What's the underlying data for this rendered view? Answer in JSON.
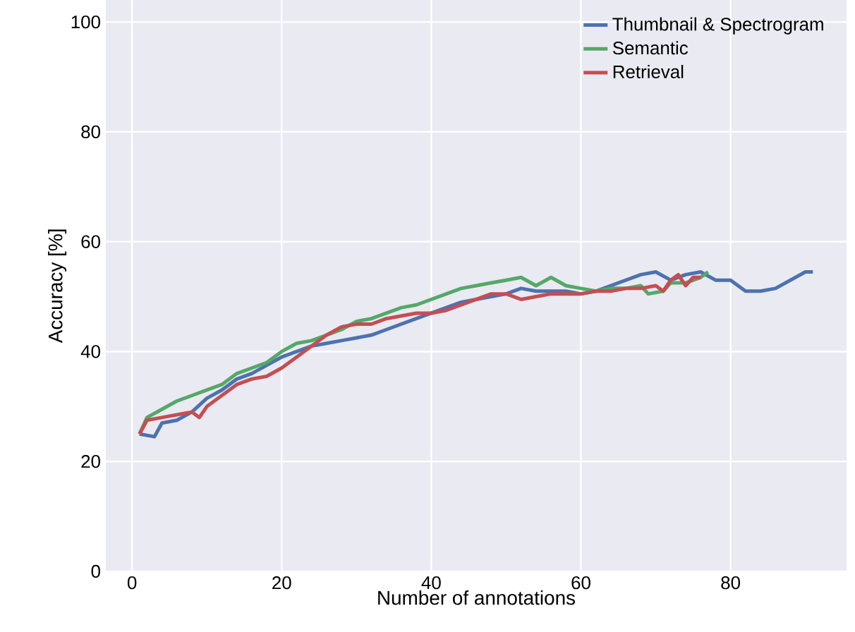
{
  "chart_data": {
    "type": "line",
    "xlabel": "Number of annotations",
    "ylabel": "Accuracy [%]",
    "xlim": [
      -3.5,
      95.5
    ],
    "ylim": [
      0,
      104
    ],
    "xticks": [
      0,
      20,
      40,
      60,
      80
    ],
    "yticks": [
      0,
      20,
      40,
      60,
      80,
      100
    ],
    "grid": true,
    "legend": "top right",
    "marker": "none",
    "line_style": "solid",
    "series": [
      {
        "name": "Thumbnail & Spectrogram",
        "color": "#4c72b0",
        "x": [
          1,
          3,
          4,
          6,
          8,
          10,
          12,
          14,
          16,
          18,
          20,
          22,
          24,
          26,
          28,
          30,
          32,
          34,
          36,
          38,
          40,
          42,
          44,
          46,
          48,
          50,
          52,
          54,
          56,
          58,
          60,
          62,
          64,
          66,
          68,
          70,
          72,
          74,
          76,
          78,
          80,
          82,
          84,
          86,
          88,
          90,
          91
        ],
        "values": [
          25,
          24.5,
          27,
          27.5,
          29,
          31.5,
          33,
          35,
          36,
          37.5,
          39,
          40,
          41,
          41.5,
          42,
          42.5,
          43,
          44,
          45,
          46,
          47,
          48,
          49,
          49.5,
          50,
          50.5,
          51.5,
          51,
          51,
          51,
          50.5,
          51,
          52,
          53,
          54,
          54.5,
          53,
          54,
          54.5,
          53,
          53,
          51,
          51,
          51.5,
          53,
          54.5,
          54.5
        ]
      },
      {
        "name": "Semantic",
        "color": "#55a868",
        "x": [
          1,
          2,
          4,
          6,
          8,
          10,
          12,
          14,
          16,
          18,
          20,
          22,
          24,
          26,
          28,
          30,
          32,
          34,
          36,
          38,
          40,
          42,
          44,
          46,
          48,
          50,
          52,
          54,
          56,
          58,
          60,
          62,
          64,
          66,
          68,
          69,
          71,
          72,
          74,
          76,
          77
        ],
        "values": [
          25,
          28,
          29.5,
          31,
          32,
          33,
          34,
          36,
          37,
          38,
          40,
          41.5,
          42,
          43,
          44,
          45.5,
          46,
          47,
          48,
          48.5,
          49.5,
          50.5,
          51.5,
          52,
          52.5,
          53,
          53.5,
          52,
          53.5,
          52,
          51.5,
          51,
          51.5,
          51.5,
          52,
          50.5,
          51,
          52.5,
          52.5,
          53.5,
          54.5
        ]
      },
      {
        "name": "Retrieval",
        "color": "#c44e52",
        "x": [
          1,
          2,
          4,
          6,
          8,
          9,
          10,
          12,
          14,
          16,
          18,
          20,
          22,
          24,
          26,
          28,
          30,
          32,
          34,
          36,
          38,
          40,
          42,
          44,
          46,
          48,
          50,
          52,
          54,
          56,
          58,
          60,
          62,
          64,
          66,
          68,
          70,
          71,
          72,
          73,
          74,
          75,
          76
        ],
        "values": [
          25,
          27.5,
          28,
          28.5,
          29,
          28,
          30,
          32,
          34,
          35,
          35.5,
          37,
          39,
          41,
          43,
          44.5,
          45,
          45,
          46,
          46.5,
          47,
          47,
          47.5,
          48.5,
          49.5,
          50.5,
          50.5,
          49.5,
          50,
          50.5,
          50.5,
          50.5,
          51,
          51,
          51.5,
          51.5,
          52,
          51,
          53,
          54,
          52,
          53.5,
          53.5
        ]
      }
    ]
  }
}
